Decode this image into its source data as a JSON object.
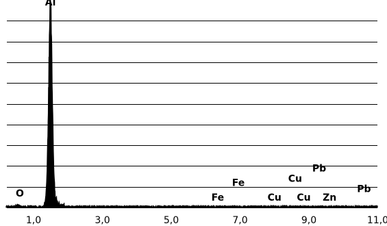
{
  "chart_data": {
    "type": "line",
    "title": "",
    "xlabel": "",
    "ylabel": "",
    "xlim": [
      0.2,
      11.0
    ],
    "ylim": [
      0,
      1
    ],
    "grid": "horizontal",
    "x_ticks": [
      {
        "value": 1.0,
        "label": "1,0"
      },
      {
        "value": 3.0,
        "label": "3,0"
      },
      {
        "value": 5.0,
        "label": "5,0"
      },
      {
        "value": 7.0,
        "label": "7,0"
      },
      {
        "value": 9.0,
        "label": "9,0"
      },
      {
        "value": 11.0,
        "label": "11,0"
      }
    ],
    "gridlines_y": [
      0.1,
      0.2,
      0.3,
      0.4,
      0.5,
      0.6,
      0.7,
      0.8,
      0.9
    ],
    "peaks": [
      {
        "element": "Al",
        "energy": 1.49,
        "intensity": 0.97
      },
      {
        "element": "O",
        "energy": 0.53,
        "intensity": 0.008
      }
    ],
    "peak_labels": [
      {
        "label": "Al",
        "energy": 1.49,
        "y": 0.99
      },
      {
        "label": "O",
        "energy": 0.6,
        "y": 0.07
      },
      {
        "label": "Fe",
        "energy": 6.35,
        "y": 0.05
      },
      {
        "label": "Fe",
        "energy": 6.95,
        "y": 0.12
      },
      {
        "label": "Cu",
        "energy": 8.0,
        "y": 0.05
      },
      {
        "label": "Cu",
        "energy": 8.6,
        "y": 0.14
      },
      {
        "label": "Cu",
        "energy": 8.85,
        "y": 0.05
      },
      {
        "label": "Pb",
        "energy": 9.3,
        "y": 0.19
      },
      {
        "label": "Zn",
        "energy": 9.6,
        "y": 0.05
      },
      {
        "label": "Pb",
        "energy": 10.6,
        "y": 0.09
      }
    ],
    "noise_level": 0.006
  }
}
